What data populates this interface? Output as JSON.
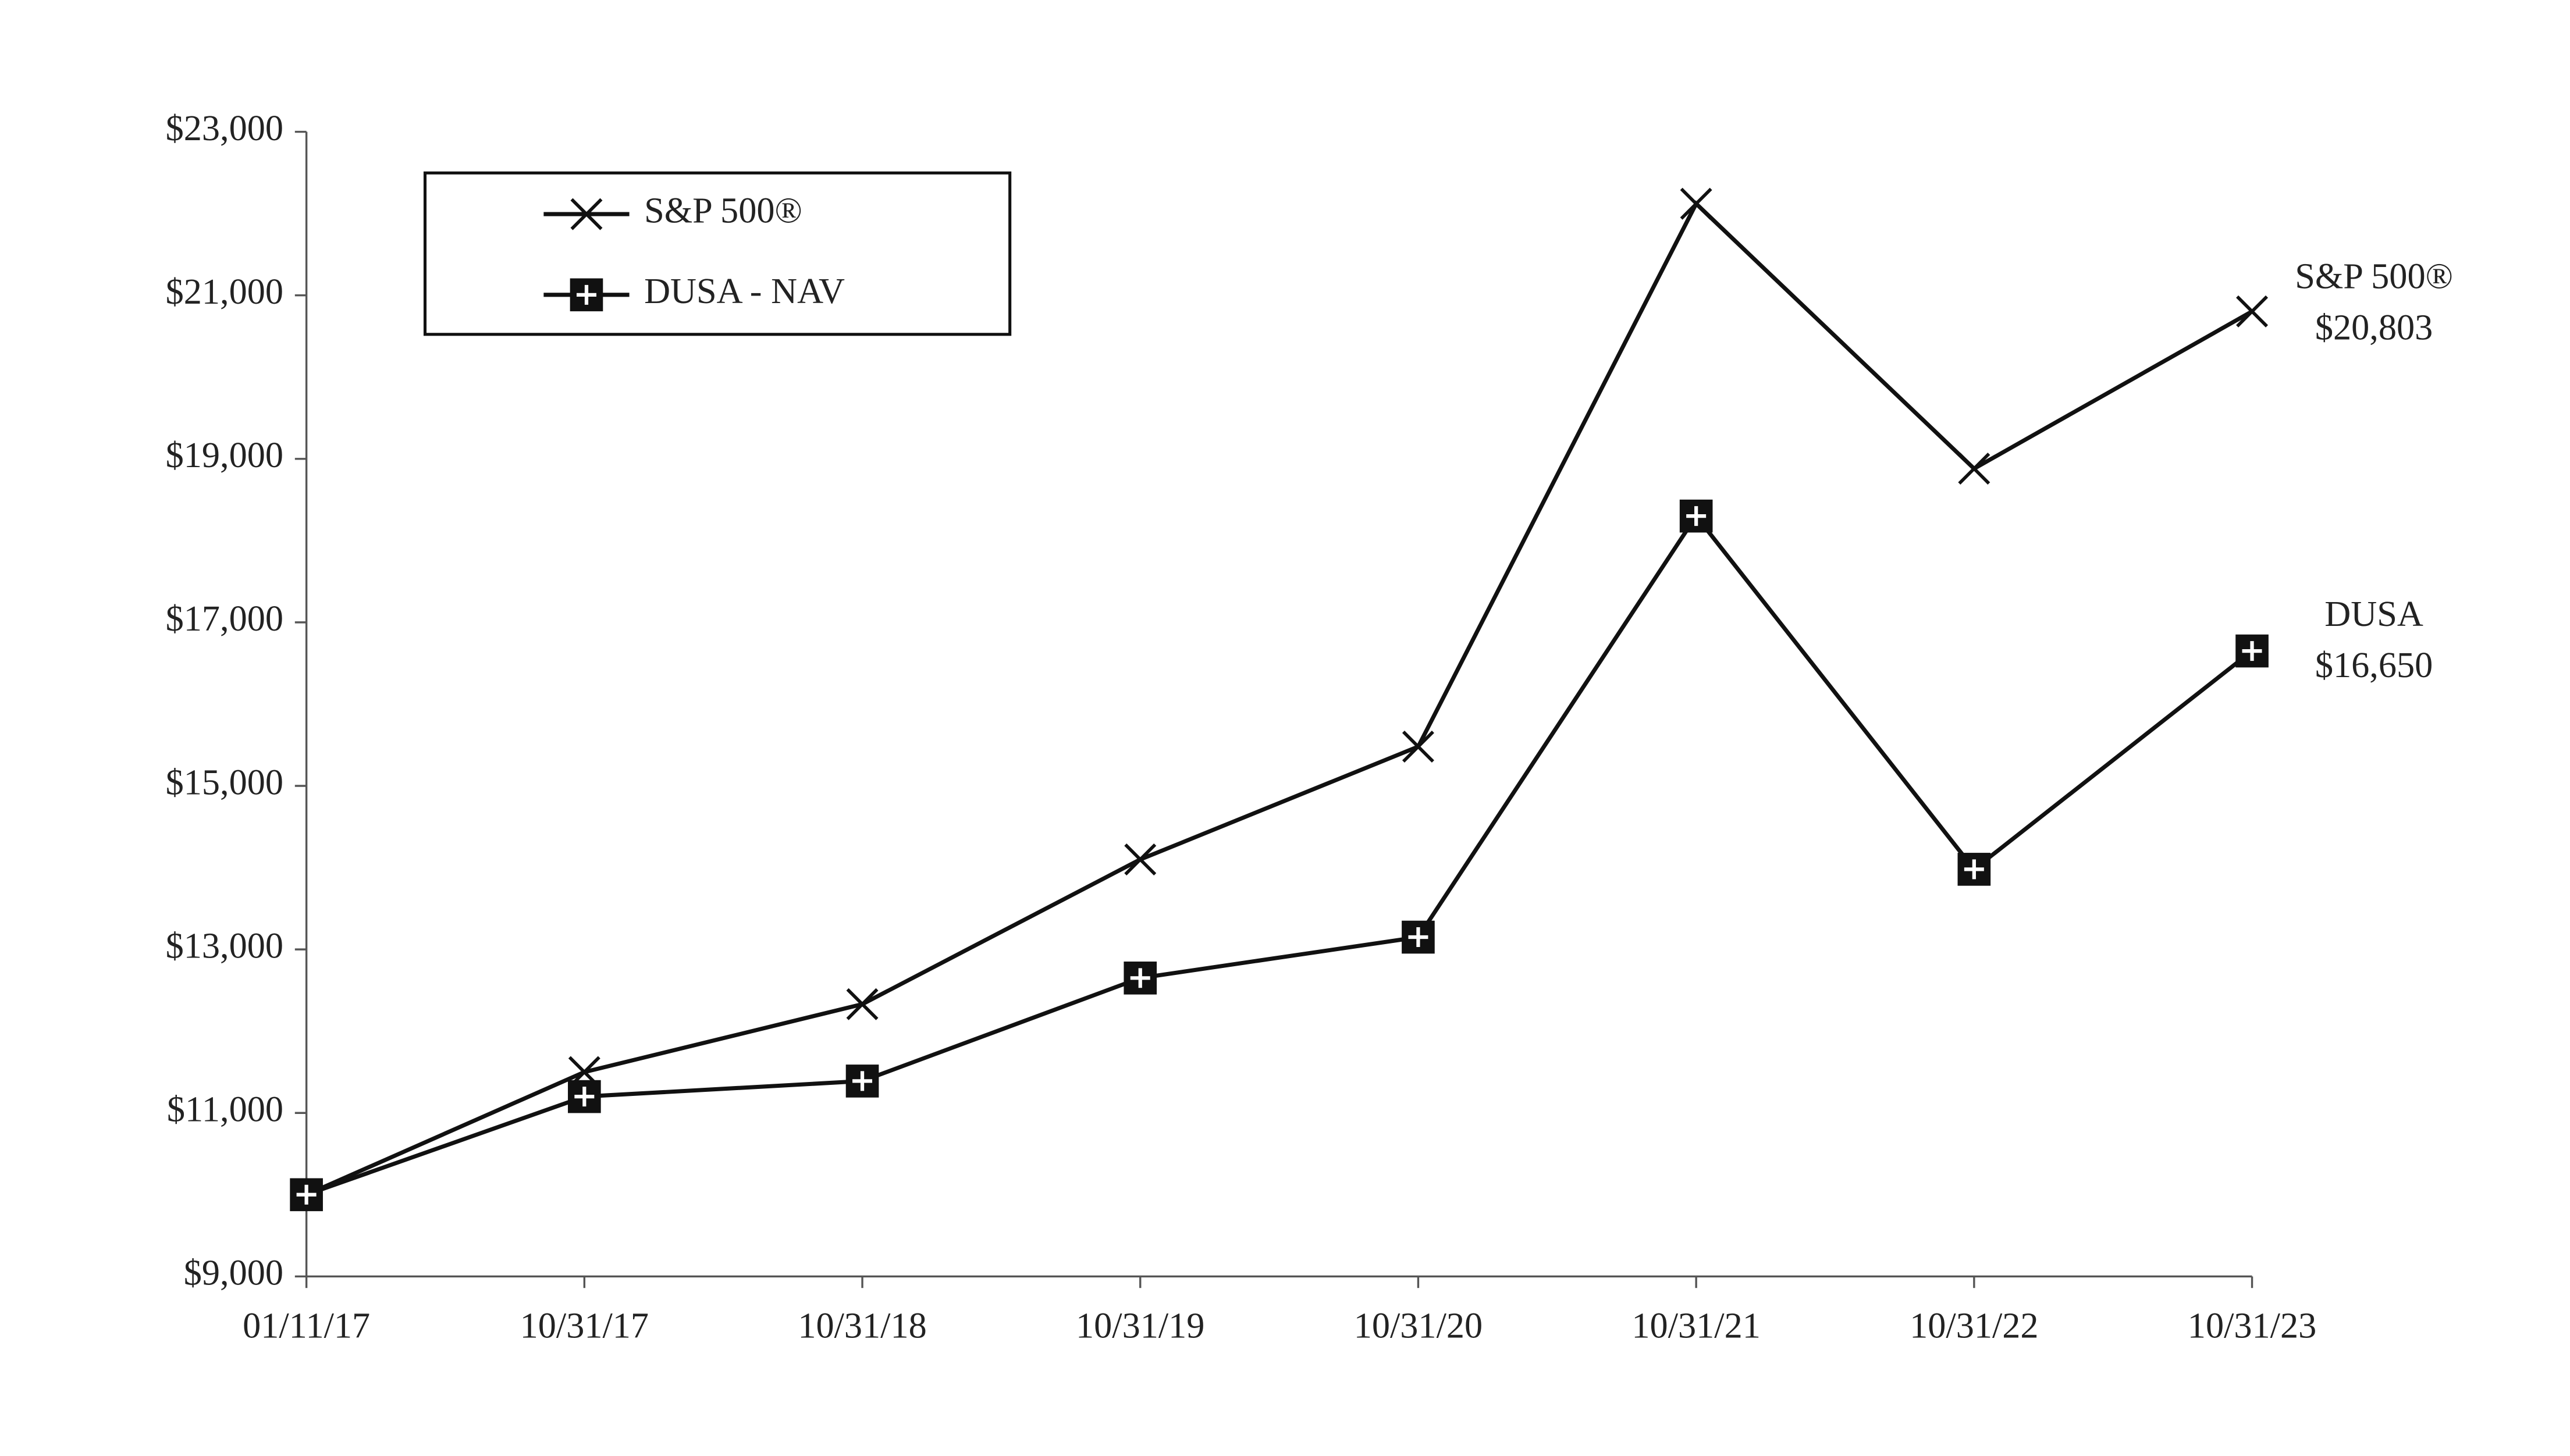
{
  "chart_data": {
    "type": "line",
    "categories": [
      "01/11/17",
      "10/31/17",
      "10/31/18",
      "10/31/19",
      "10/31/20",
      "10/31/21",
      "10/31/22",
      "10/31/23"
    ],
    "series": [
      {
        "name": "S&P 500®",
        "color": "#111111",
        "marker": "x",
        "values": [
          10000,
          11500,
          12330,
          14100,
          15480,
          22120,
          18880,
          20803
        ]
      },
      {
        "name": "DUSA - NAV",
        "color": "#111111",
        "marker": "square-plus",
        "values": [
          10000,
          11200,
          11390,
          12650,
          13150,
          18300,
          13980,
          16650
        ]
      }
    ],
    "annotations": [
      {
        "lines": [
          "S&P 500®",
          "$20,803"
        ]
      },
      {
        "lines": [
          "DUSA",
          "$16,650"
        ]
      }
    ],
    "ylim": [
      9000,
      23000
    ],
    "yticks": [
      {
        "value": 9000,
        "label": "$9,000"
      },
      {
        "value": 11000,
        "label": "$11,000"
      },
      {
        "value": 13000,
        "label": "$13,000"
      },
      {
        "value": 15000,
        "label": "$15,000"
      },
      {
        "value": 17000,
        "label": "$17,000"
      },
      {
        "value": 19000,
        "label": "$19,000"
      },
      {
        "value": 21000,
        "label": "$21,000"
      },
      {
        "value": 23000,
        "label": "$23,000"
      }
    ],
    "grid": false,
    "legend": "upper-left"
  }
}
